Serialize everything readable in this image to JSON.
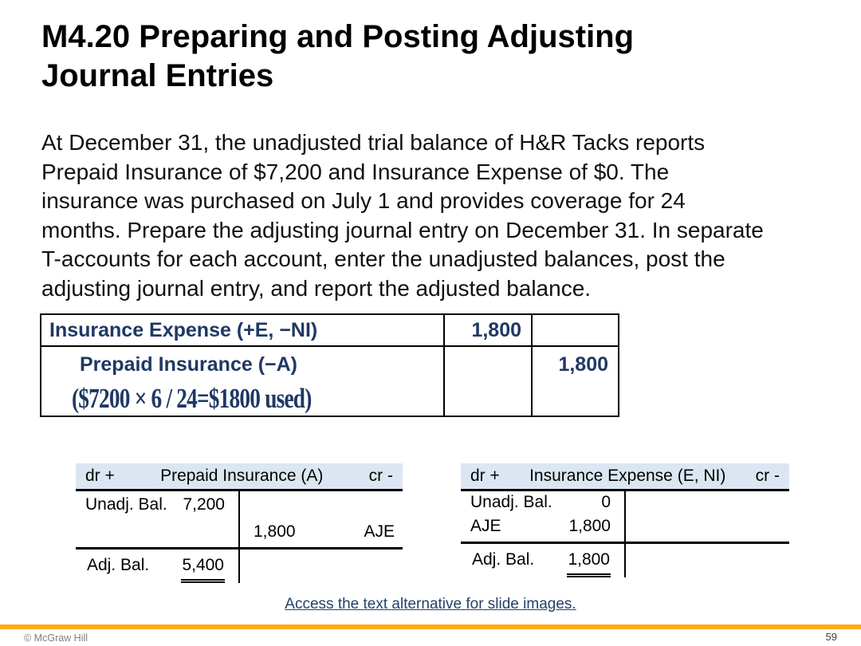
{
  "slide": {
    "title_lines": [
      "M4.20 Preparing and Posting Adjusting",
      "Journal Entries"
    ],
    "body_lines": [
      "At December 31, the unadjusted trial balance of H&R Tacks reports",
      "Prepaid Insurance of $7,200 and Insurance Expense of $0. The",
      "insurance was purchased on July 1 and provides coverage for 24",
      "months. Prepare the adjusting journal entry on December 31. In separate",
      "T-accounts for each account, enter the unadjusted balances, post the",
      "adjusting journal entry, and report the adjusted balance."
    ]
  },
  "journal_entry": {
    "rows": [
      {
        "account": "Insurance Expense (+E, −NI)",
        "debit": "1,800",
        "credit": ""
      },
      {
        "account": "Prepaid Insurance (−A)",
        "debit": "",
        "credit": "1,800",
        "note": "($7200 × 6 / 24=$1800 used)"
      }
    ]
  },
  "t_accounts": {
    "left": {
      "dr_label": "dr +",
      "title": "Prepaid Insurance (A)",
      "cr_label": "cr -",
      "unadj_label": "Unadj. Bal.",
      "unadj_amount": "7,200",
      "aje_amount": "1,800",
      "aje_label": "AJE",
      "adj_label": "Adj. Bal.",
      "adj_amount": "5,400"
    },
    "right": {
      "dr_label": "dr +",
      "title": "Insurance Expense (E, NI)",
      "cr_label": "cr -",
      "unadj_label": "Unadj. Bal.",
      "unadj_amount": "0",
      "aje_label": "AJE",
      "aje_amount": "1,800",
      "adj_label": "Adj. Bal.",
      "adj_amount": "1,800"
    }
  },
  "footer": {
    "link_text": "Access the text alternative for slide images.",
    "copyright": "© McGraw Hill",
    "page_number": "59"
  },
  "colors": {
    "table_text": "#1F3864",
    "taccount_header_bg": "#DCE6F2",
    "accent_bar": "#FBAB17",
    "link": "#24426B",
    "footer_text": "#7F7F7F"
  }
}
